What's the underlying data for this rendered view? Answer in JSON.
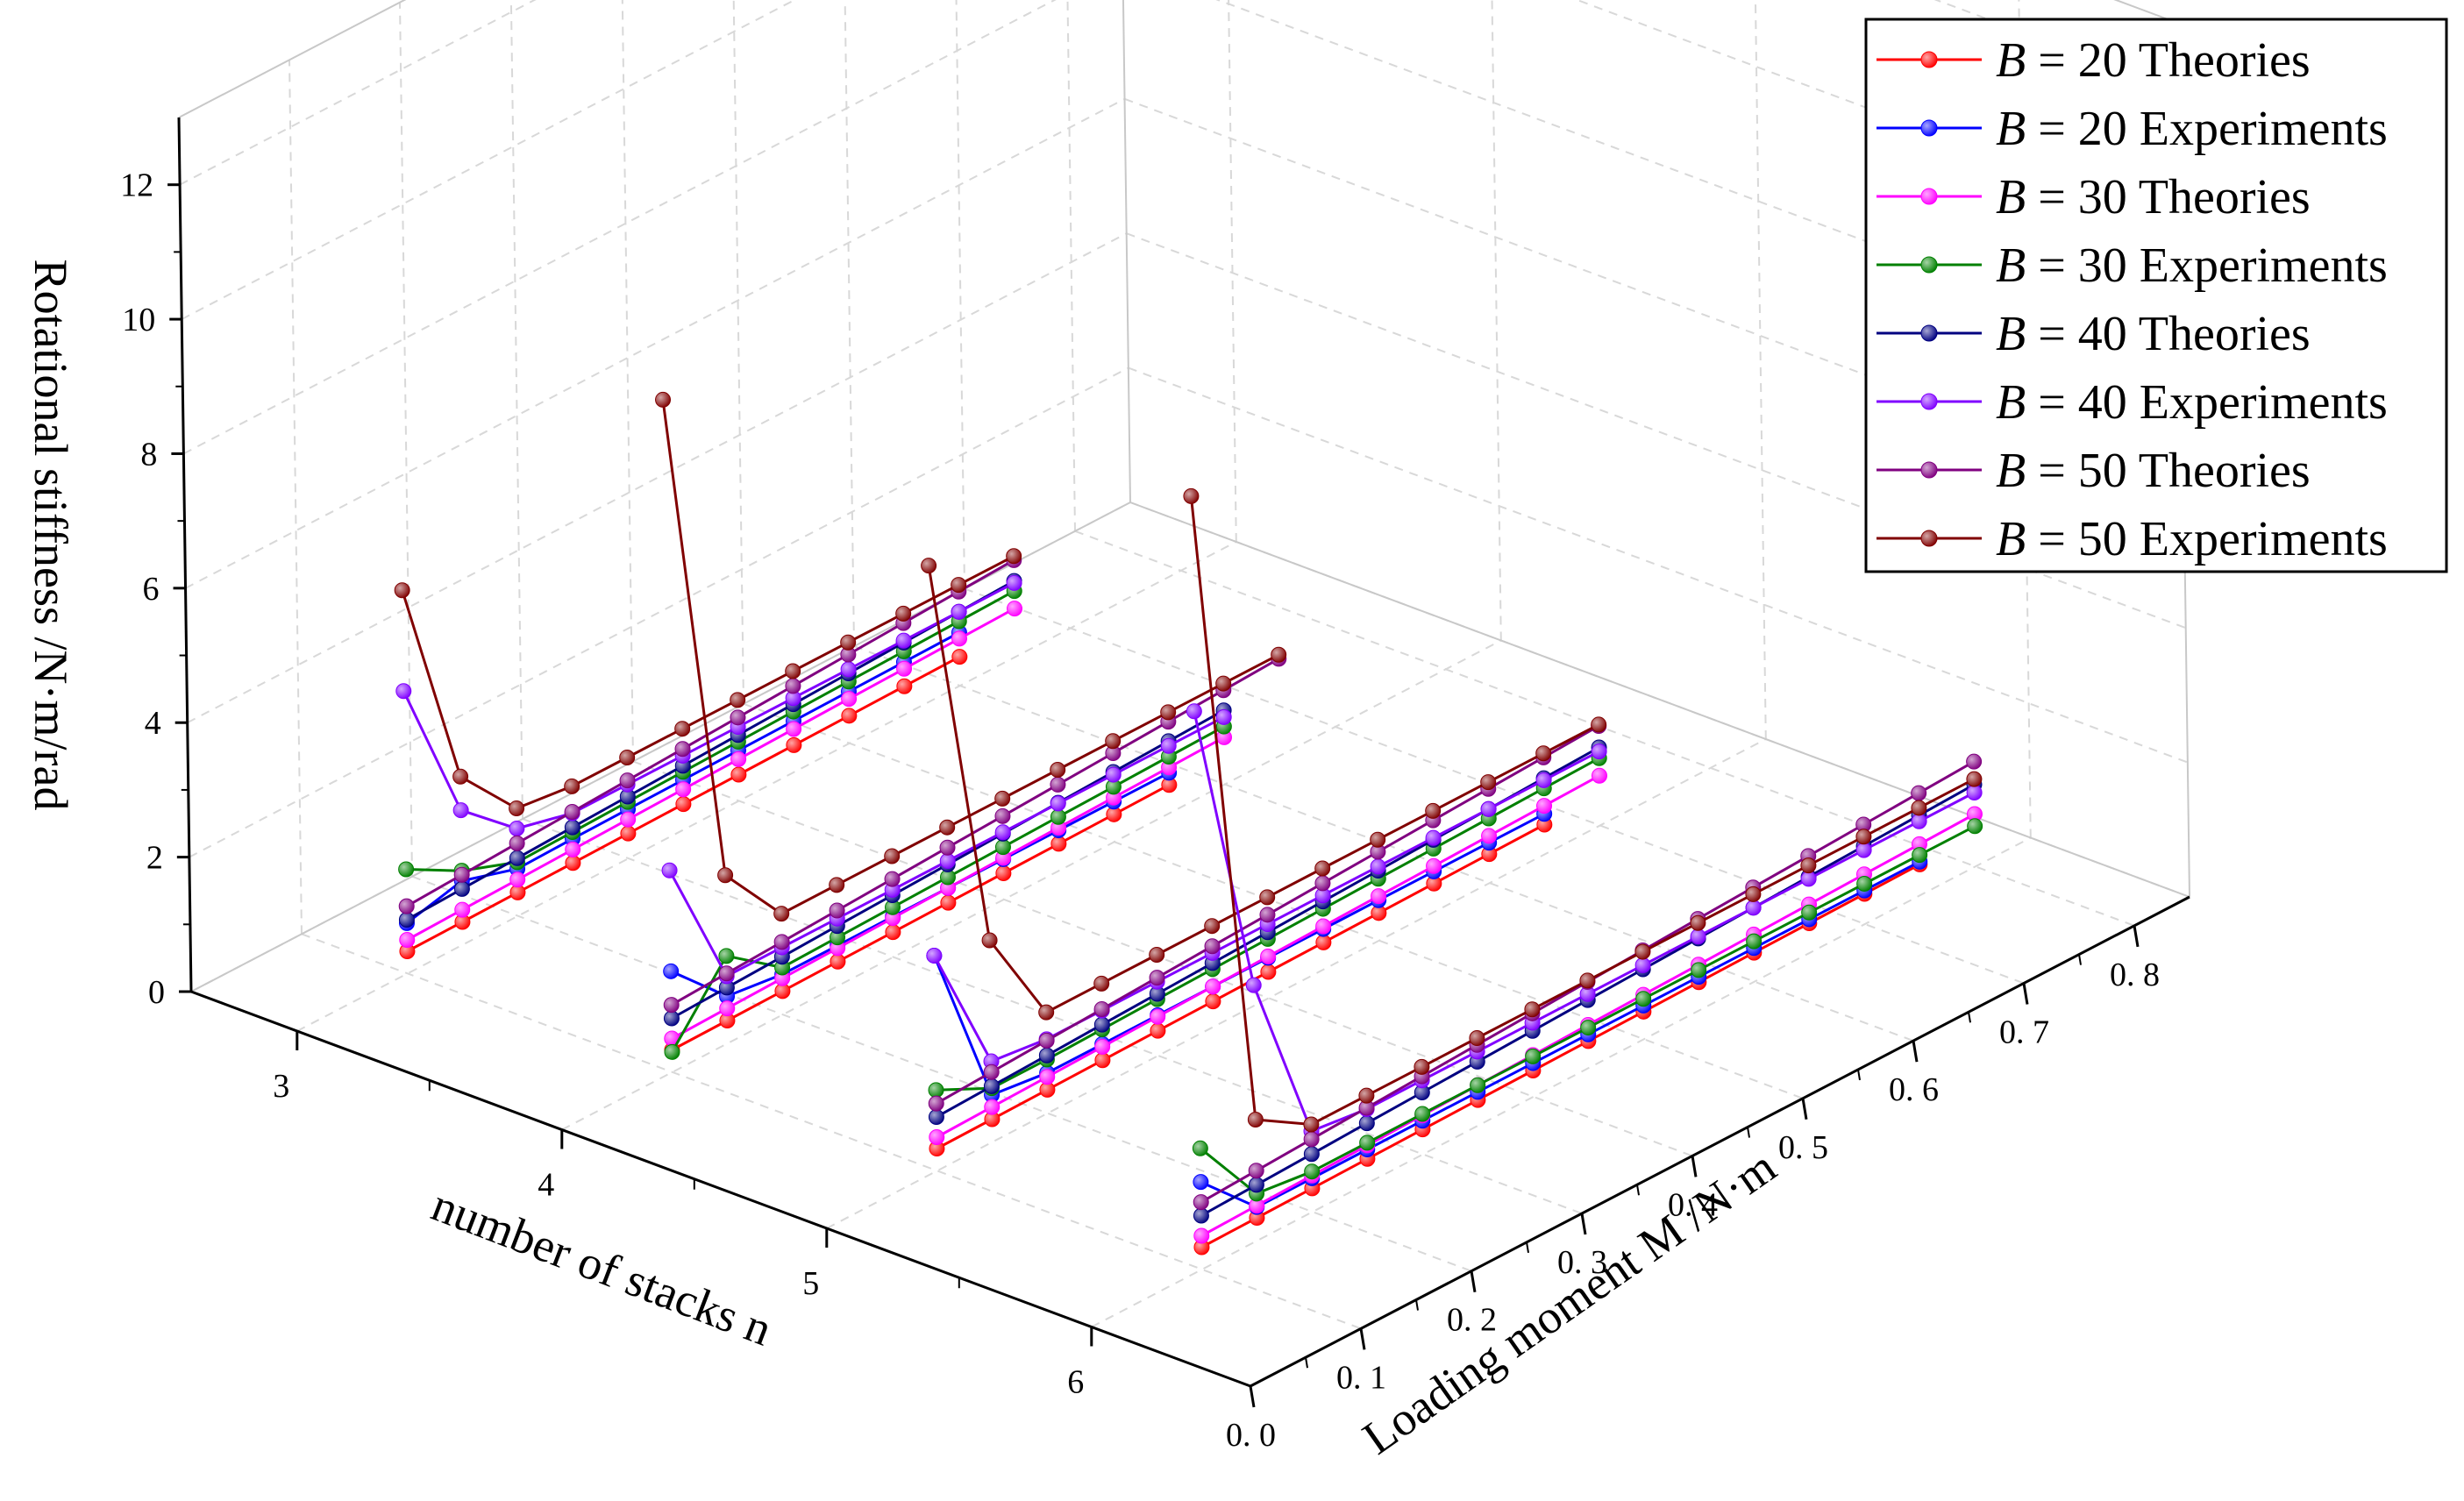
{
  "chart_data": {
    "type": "line3d",
    "title": "",
    "axes": {
      "x": {
        "label": "number of stacks n",
        "ticks": [
          "3",
          "4",
          "5",
          "6"
        ],
        "range": [
          2.6,
          6.6
        ]
      },
      "y": {
        "label": "Loading moment M /N·m",
        "ticks": [
          "0. 0",
          "0. 1",
          "0. 2",
          "0. 3",
          "0. 4",
          "0. 5",
          "0. 6",
          "0. 7",
          "0. 8"
        ],
        "range": [
          0,
          0.85
        ]
      },
      "z": {
        "label": "Rotational stiffness /N·m/rad",
        "ticks": [
          "0",
          "2",
          "4",
          "6",
          "8",
          "10",
          "12"
        ],
        "range": [
          0,
          13
        ]
      }
    },
    "moments": [
      0.05,
      0.1,
      0.15,
      0.2,
      0.25,
      0.3,
      0.35,
      0.4,
      0.45,
      0.5,
      0.55,
      0.6,
      0.65,
      0.7,
      0.75,
      0.8
    ],
    "legend": [
      {
        "B": "B",
        "text": "= 20 Theories",
        "color": "#ff0000"
      },
      {
        "B": "B",
        "text": "= 20 Experiments",
        "color": "#0000ff"
      },
      {
        "B": "B",
        "text": "= 30 Theories",
        "color": "#ff00ff"
      },
      {
        "B": "B",
        "text": "= 30 Experiments",
        "color": "#008000"
      },
      {
        "B": "B",
        "text": "= 40 Theories",
        "color": "#000080"
      },
      {
        "B": "B",
        "text": "= 40 Experiments",
        "color": "#8000ff"
      },
      {
        "B": "B",
        "text": "= 50 Theories",
        "color": "#800080"
      },
      {
        "B": "B",
        "text": "= 50 Experiments",
        "color": "#800000"
      }
    ],
    "series": [
      {
        "name": "B = 20 Theories",
        "n": 3,
        "color": "#ff0000",
        "y": [
          0.1,
          0.15,
          0.2,
          0.25,
          0.3,
          0.35,
          0.4,
          0.45,
          0.5,
          0.55,
          0.6
        ],
        "z": [
          0.33,
          0.34,
          0.35,
          0.36,
          0.37,
          0.38,
          0.39,
          0.4,
          0.41,
          0.42,
          0.43
        ]
      },
      {
        "name": "B = 20 Experiments",
        "n": 3,
        "color": "#0000ff",
        "y": [
          0.1,
          0.15,
          0.2,
          0.25,
          0.3,
          0.35,
          0.4,
          0.45,
          0.5,
          0.55,
          0.6
        ],
        "z": [
          0.75,
          0.95,
          0.7,
          0.72,
          0.73,
          0.74,
          0.75,
          0.76,
          0.77,
          0.78,
          0.79
        ]
      },
      {
        "name": "B = 30 Theories",
        "n": 3,
        "color": "#ff00ff",
        "y": [
          0.1,
          0.15,
          0.2,
          0.25,
          0.3,
          0.35,
          0.4,
          0.45,
          0.5,
          0.55,
          0.6,
          0.65
        ],
        "z": [
          0.5,
          0.52,
          0.54,
          0.56,
          0.58,
          0.6,
          0.62,
          0.64,
          0.66,
          0.68,
          0.7,
          0.72
        ]
      },
      {
        "name": "B = 30 Experiments",
        "n": 3,
        "color": "#008000",
        "y": [
          0.1,
          0.15,
          0.2,
          0.25,
          0.3,
          0.35,
          0.4,
          0.45,
          0.5,
          0.55,
          0.6,
          0.65
        ],
        "z": [
          1.55,
          1.1,
          0.8,
          0.82,
          0.84,
          0.86,
          0.88,
          0.9,
          0.92,
          0.94,
          0.96,
          0.98
        ]
      },
      {
        "name": "B = 40 Theories",
        "n": 3,
        "color": "#000080",
        "y": [
          0.1,
          0.15,
          0.2,
          0.25,
          0.3,
          0.35,
          0.4,
          0.45,
          0.5,
          0.55,
          0.6,
          0.65
        ],
        "z": [
          0.8,
          0.83,
          0.86,
          0.89,
          0.92,
          0.95,
          0.98,
          1.01,
          1.04,
          1.07,
          1.1,
          1.13
        ]
      },
      {
        "name": "B = 40 Experiments",
        "n": 3,
        "color": "#8000ff",
        "y": [
          0.1,
          0.15,
          0.2,
          0.25,
          0.3,
          0.35,
          0.4,
          0.45,
          0.5,
          0.55,
          0.6,
          0.65
        ],
        "z": [
          4.2,
          2.0,
          1.3,
          1.1,
          1.1,
          1.1,
          1.1,
          1.1,
          1.1,
          1.1,
          1.1,
          1.1
        ]
      },
      {
        "name": "B = 50 Theories",
        "n": 3,
        "color": "#800080",
        "y": [
          0.1,
          0.15,
          0.2,
          0.25,
          0.3,
          0.35,
          0.4,
          0.45,
          0.5,
          0.55,
          0.6,
          0.65
        ],
        "z": [
          1.0,
          1.04,
          1.08,
          1.12,
          1.16,
          1.2,
          1.24,
          1.28,
          1.32,
          1.36,
          1.4,
          1.44
        ]
      },
      {
        "name": "B = 50 Experiments",
        "n": 3,
        "color": "#800000",
        "y": [
          0.1,
          0.15,
          0.2,
          0.25,
          0.3,
          0.35,
          0.4,
          0.45,
          0.5,
          0.55,
          0.6,
          0.65
        ],
        "z": [
          5.7,
          2.5,
          1.6,
          1.5,
          1.5,
          1.5,
          1.5,
          1.5,
          1.5,
          1.5,
          1.5,
          1.5
        ]
      },
      {
        "name": "B = 20 Theories",
        "n": 4,
        "color": "#ff0000",
        "y": [
          0.1,
          0.15,
          0.2,
          0.25,
          0.3,
          0.35,
          0.4,
          0.45,
          0.5,
          0.55
        ],
        "z": [
          0.33,
          0.34,
          0.35,
          0.36,
          0.37,
          0.38,
          0.39,
          0.4,
          0.41,
          0.42
        ]
      },
      {
        "name": "B = 20 Experiments",
        "n": 4,
        "color": "#0000ff",
        "y": [
          0.1,
          0.15,
          0.2,
          0.25,
          0.3,
          0.35,
          0.4,
          0.45,
          0.5,
          0.55
        ],
        "z": [
          1.5,
          0.7,
          0.6,
          0.6,
          0.6,
          0.6,
          0.6,
          0.6,
          0.6,
          0.6
        ]
      },
      {
        "name": "B = 30 Theories",
        "n": 4,
        "color": "#ff00ff",
        "y": [
          0.1,
          0.15,
          0.2,
          0.25,
          0.3,
          0.35,
          0.4,
          0.45,
          0.5,
          0.55,
          0.6
        ],
        "z": [
          0.5,
          0.52,
          0.54,
          0.56,
          0.58,
          0.6,
          0.62,
          0.64,
          0.66,
          0.68,
          0.7
        ]
      },
      {
        "name": "B = 30 Experiments",
        "n": 4,
        "color": "#008000",
        "y": [
          0.1,
          0.15,
          0.2,
          0.25,
          0.3,
          0.35,
          0.4,
          0.45,
          0.5,
          0.55,
          0.6
        ],
        "z": [
          0.3,
          1.3,
          0.7,
          0.72,
          0.74,
          0.76,
          0.78,
          0.8,
          0.82,
          0.84,
          0.86
        ]
      },
      {
        "name": "B = 40 Theories",
        "n": 4,
        "color": "#000080",
        "y": [
          0.1,
          0.15,
          0.2,
          0.25,
          0.3,
          0.35,
          0.4,
          0.45,
          0.5,
          0.55,
          0.6
        ],
        "z": [
          0.8,
          0.83,
          0.86,
          0.89,
          0.92,
          0.95,
          0.98,
          1.01,
          1.04,
          1.07,
          1.1
        ]
      },
      {
        "name": "B = 40 Experiments",
        "n": 4,
        "color": "#8000ff",
        "y": [
          0.1,
          0.15,
          0.2,
          0.25,
          0.3,
          0.35,
          0.4,
          0.45,
          0.5,
          0.55,
          0.6
        ],
        "z": [
          3.0,
          1.0,
          1.0,
          1.0,
          1.0,
          1.0,
          1.0,
          1.0,
          1.0,
          1.0,
          1.0
        ]
      },
      {
        "name": "B = 50 Theories",
        "n": 4,
        "color": "#800080",
        "y": [
          0.1,
          0.15,
          0.2,
          0.25,
          0.3,
          0.35,
          0.4,
          0.45,
          0.5,
          0.55,
          0.6,
          0.65
        ],
        "z": [
          1.0,
          1.04,
          1.08,
          1.12,
          1.16,
          1.2,
          1.24,
          1.28,
          1.32,
          1.36,
          1.4,
          1.44
        ]
      },
      {
        "name": "B = 50 Experiments",
        "n": 4,
        "color": "#800000",
        "y": [
          0.1,
          0.15,
          0.2,
          0.25,
          0.3,
          0.35,
          0.4,
          0.45,
          0.5,
          0.55,
          0.6,
          0.65
        ],
        "z": [
          10.0,
          2.5,
          1.5,
          1.5,
          1.5,
          1.5,
          1.5,
          1.5,
          1.5,
          1.5,
          1.5,
          1.5
        ]
      },
      {
        "name": "B = 20 Theories",
        "n": 5,
        "color": "#ff0000",
        "y": [
          0.1,
          0.15,
          0.2,
          0.25,
          0.3,
          0.35,
          0.4,
          0.45,
          0.5,
          0.55,
          0.6,
          0.65
        ],
        "z": [
          0.33,
          0.34,
          0.35,
          0.36,
          0.37,
          0.38,
          0.39,
          0.4,
          0.41,
          0.42,
          0.43,
          0.44
        ]
      },
      {
        "name": "B = 20 Experiments",
        "n": 5,
        "color": "#0000ff",
        "y": [
          0.1,
          0.15,
          0.2,
          0.25,
          0.3,
          0.35,
          0.4,
          0.45,
          0.5,
          0.55,
          0.6,
          0.65
        ],
        "z": [
          3.2,
          0.7,
          0.6,
          0.6,
          0.6,
          0.6,
          0.6,
          0.6,
          0.6,
          0.6,
          0.6,
          0.6
        ]
      },
      {
        "name": "B = 30 Theories",
        "n": 5,
        "color": "#ff00ff",
        "y": [
          0.1,
          0.15,
          0.2,
          0.25,
          0.3,
          0.35,
          0.4,
          0.45,
          0.5,
          0.55,
          0.6,
          0.65,
          0.7
        ],
        "z": [
          0.5,
          0.52,
          0.54,
          0.56,
          0.58,
          0.6,
          0.62,
          0.64,
          0.66,
          0.68,
          0.7,
          0.72,
          0.74
        ]
      },
      {
        "name": "B = 30 Experiments",
        "n": 5,
        "color": "#008000",
        "y": [
          0.1,
          0.15,
          0.2,
          0.25,
          0.3,
          0.35,
          0.4,
          0.45,
          0.5,
          0.55,
          0.6,
          0.65,
          0.7
        ],
        "z": [
          1.2,
          0.8,
          0.8,
          0.82,
          0.84,
          0.86,
          0.88,
          0.9,
          0.92,
          0.94,
          0.96,
          0.98,
          1.0
        ]
      },
      {
        "name": "B = 40 Theories",
        "n": 5,
        "color": "#000080",
        "y": [
          0.1,
          0.15,
          0.2,
          0.25,
          0.3,
          0.35,
          0.4,
          0.45,
          0.5,
          0.55,
          0.6,
          0.65,
          0.7
        ],
        "z": [
          0.8,
          0.83,
          0.86,
          0.89,
          0.92,
          0.95,
          0.98,
          1.01,
          1.04,
          1.07,
          1.1,
          1.13,
          1.16
        ]
      },
      {
        "name": "B = 40 Experiments",
        "n": 5,
        "color": "#8000ff",
        "y": [
          0.1,
          0.15,
          0.2,
          0.25,
          0.3,
          0.35,
          0.4,
          0.45,
          0.5,
          0.55,
          0.6,
          0.65,
          0.7
        ],
        "z": [
          3.2,
          1.2,
          1.1,
          1.1,
          1.1,
          1.1,
          1.1,
          1.1,
          1.1,
          1.1,
          1.1,
          1.1,
          1.1
        ]
      },
      {
        "name": "B = 50 Theories",
        "n": 5,
        "color": "#800080",
        "y": [
          0.1,
          0.15,
          0.2,
          0.25,
          0.3,
          0.35,
          0.4,
          0.45,
          0.5,
          0.55,
          0.6,
          0.65,
          0.7
        ],
        "z": [
          1.0,
          1.04,
          1.08,
          1.12,
          1.16,
          1.2,
          1.24,
          1.28,
          1.32,
          1.36,
          1.4,
          1.44,
          1.48
        ]
      },
      {
        "name": "B = 50 Experiments",
        "n": 5,
        "color": "#800000",
        "y": [
          0.1,
          0.15,
          0.2,
          0.25,
          0.3,
          0.35,
          0.4,
          0.45,
          0.5,
          0.55,
          0.6,
          0.65,
          0.7
        ],
        "z": [
          9.0,
          3.0,
          1.5,
          1.5,
          1.5,
          1.5,
          1.5,
          1.5,
          1.5,
          1.5,
          1.5,
          1.5,
          1.5
        ]
      },
      {
        "name": "B = 20 Theories",
        "n": 6,
        "color": "#ff0000",
        "y": [
          0.1,
          0.15,
          0.2,
          0.25,
          0.3,
          0.35,
          0.4,
          0.45,
          0.5,
          0.55,
          0.6,
          0.65,
          0.7,
          0.75
        ],
        "z": [
          0.33,
          0.34,
          0.35,
          0.36,
          0.37,
          0.38,
          0.39,
          0.4,
          0.41,
          0.42,
          0.43,
          0.44,
          0.45,
          0.46
        ]
      },
      {
        "name": "B = 20 Experiments",
        "n": 6,
        "color": "#0000ff",
        "y": [
          0.1,
          0.15,
          0.2,
          0.25,
          0.3,
          0.35,
          0.4,
          0.45,
          0.5,
          0.55,
          0.6,
          0.65,
          0.7,
          0.75
        ],
        "z": [
          1.3,
          0.5,
          0.5,
          0.5,
          0.5,
          0.5,
          0.5,
          0.5,
          0.5,
          0.5,
          0.5,
          0.5,
          0.5,
          0.5
        ]
      },
      {
        "name": "B = 30 Theories",
        "n": 6,
        "color": "#ff00ff",
        "y": [
          0.1,
          0.15,
          0.2,
          0.25,
          0.3,
          0.35,
          0.4,
          0.45,
          0.5,
          0.55,
          0.6,
          0.65,
          0.7,
          0.75,
          0.8
        ],
        "z": [
          0.5,
          0.52,
          0.54,
          0.56,
          0.58,
          0.6,
          0.62,
          0.64,
          0.66,
          0.68,
          0.7,
          0.72,
          0.74,
          0.76,
          0.78
        ]
      },
      {
        "name": "B = 30 Experiments",
        "n": 6,
        "color": "#008000",
        "y": [
          0.1,
          0.15,
          0.2,
          0.25,
          0.3,
          0.35,
          0.4,
          0.45,
          0.5,
          0.55,
          0.6,
          0.65,
          0.7,
          0.75,
          0.8
        ],
        "z": [
          1.8,
          0.7,
          0.6,
          0.6,
          0.6,
          0.6,
          0.6,
          0.6,
          0.6,
          0.6,
          0.6,
          0.6,
          0.6,
          0.6,
          0.6
        ]
      },
      {
        "name": "B = 40 Theories",
        "n": 6,
        "color": "#000080",
        "y": [
          0.1,
          0.15,
          0.2,
          0.25,
          0.3,
          0.35,
          0.4,
          0.45,
          0.5,
          0.55,
          0.6,
          0.65,
          0.7,
          0.75,
          0.8
        ],
        "z": [
          0.8,
          0.83,
          0.86,
          0.89,
          0.92,
          0.95,
          0.98,
          1.01,
          1.04,
          1.07,
          1.1,
          1.13,
          1.16,
          1.19,
          1.22
        ]
      },
      {
        "name": "B = 40 Experiments",
        "n": 6,
        "color": "#8000ff",
        "y": [
          0.1,
          0.15,
          0.2,
          0.25,
          0.3,
          0.35,
          0.4,
          0.45,
          0.5,
          0.55,
          0.6,
          0.65,
          0.7,
          0.75,
          0.8
        ],
        "z": [
          8.3,
          3.8,
          1.2,
          1.1,
          1.1,
          1.1,
          1.1,
          1.1,
          1.1,
          1.1,
          1.1,
          1.1,
          1.1,
          1.1,
          1.1
        ]
      },
      {
        "name": "B = 50 Theories",
        "n": 6,
        "color": "#800080",
        "y": [
          0.1,
          0.15,
          0.2,
          0.25,
          0.3,
          0.35,
          0.4,
          0.45,
          0.5,
          0.55,
          0.6,
          0.65,
          0.7,
          0.75,
          0.8
        ],
        "z": [
          1.0,
          1.04,
          1.08,
          1.12,
          1.16,
          1.2,
          1.24,
          1.28,
          1.32,
          1.36,
          1.4,
          1.44,
          1.48,
          1.52,
          1.56
        ]
      },
      {
        "name": "B = 50 Experiments",
        "n": 6,
        "color": "#800000",
        "y": [
          0.1,
          0.15,
          0.2,
          0.25,
          0.3,
          0.35,
          0.4,
          0.45,
          0.5,
          0.55,
          0.6,
          0.65,
          0.7,
          0.75,
          0.8
        ],
        "z": [
          11.5,
          1.8,
          1.3,
          1.3,
          1.3,
          1.3,
          1.3,
          1.3,
          1.3,
          1.3,
          1.3,
          1.3,
          1.3,
          1.3,
          1.3
        ]
      }
    ]
  }
}
